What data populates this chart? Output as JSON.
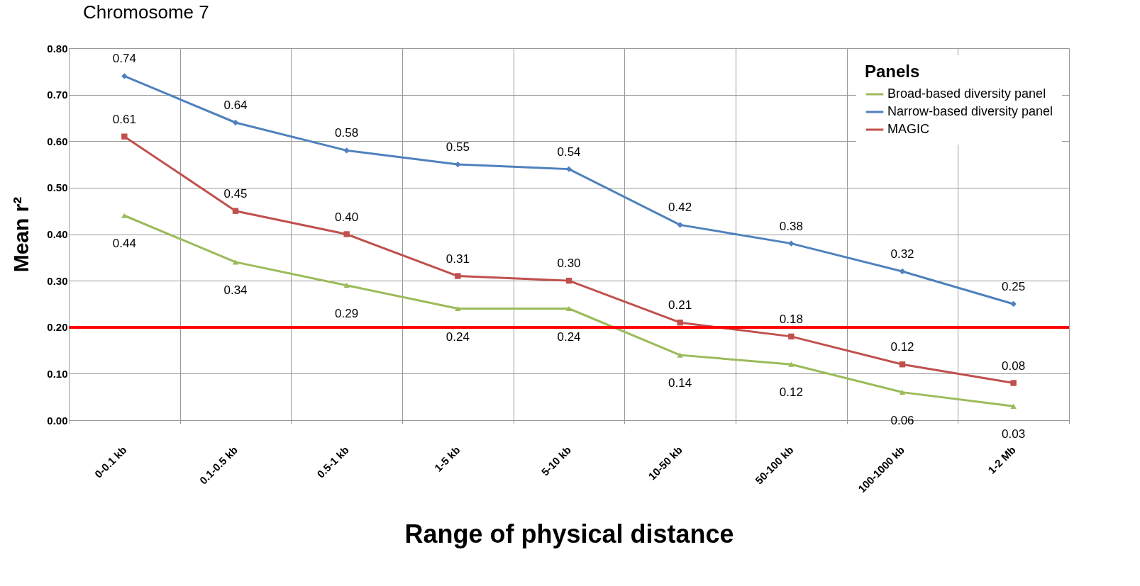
{
  "chart_data": {
    "type": "line",
    "title": "Chromosome 7",
    "xlabel": "Range of physical distance",
    "ylabel": "Mean r²",
    "legend_title": "Panels",
    "categories": [
      "0-0.1 kb",
      "0.1-0.5 kb",
      "0.5-1 kb",
      "1-5 kb",
      "5-10 kb",
      "10-50 kb",
      "50-100 kb",
      "100-1000 kb",
      "1-2 Mb"
    ],
    "series": [
      {
        "name": "Broad-based diversity panel",
        "color": "#9bbb59",
        "marker": "triangle",
        "values": [
          0.44,
          0.34,
          0.29,
          0.24,
          0.24,
          0.14,
          0.12,
          0.06,
          0.03
        ],
        "value_labels": [
          "0.44",
          "0.34",
          "0.29",
          "0.24",
          "0.24",
          "0.14",
          "0.12",
          "0.06",
          "0.03"
        ]
      },
      {
        "name": "Narrow-based diversity panel",
        "color": "#4f81bd",
        "marker": "diamond",
        "values": [
          0.74,
          0.64,
          0.58,
          0.55,
          0.54,
          0.42,
          0.38,
          0.32,
          0.25
        ],
        "value_labels": [
          "0.74",
          "0.64",
          "0.58",
          "0.55",
          "0.54",
          "0.42",
          "0.38",
          "0.32",
          "0.25"
        ]
      },
      {
        "name": "MAGIC",
        "color": "#c0504d",
        "marker": "square",
        "values": [
          0.61,
          0.45,
          0.4,
          0.31,
          0.3,
          0.21,
          0.18,
          0.12,
          0.08
        ],
        "value_labels": [
          "0.61",
          "0.45",
          "0.40",
          "0.31",
          "0.30",
          "0.21",
          "0.18",
          "0.12",
          "0.08"
        ]
      }
    ],
    "ylim": [
      0,
      0.8
    ],
    "yticks": [
      {
        "value": 0,
        "label": "0.00"
      },
      {
        "value": 0.1,
        "label": "0.10"
      },
      {
        "value": 0.2,
        "label": "0.20"
      },
      {
        "value": 0.3,
        "label": "0.30"
      },
      {
        "value": 0.4,
        "label": "0.40"
      },
      {
        "value": 0.5,
        "label": "0.50"
      },
      {
        "value": 0.6,
        "label": "0.60"
      },
      {
        "value": 0.7,
        "label": "0.70"
      },
      {
        "value": 0.8,
        "label": "0.80"
      }
    ],
    "ref_lines": [
      {
        "axis": "y",
        "value": 0.2,
        "color": "#ff0000"
      }
    ],
    "grid": true,
    "legend": "top right"
  }
}
